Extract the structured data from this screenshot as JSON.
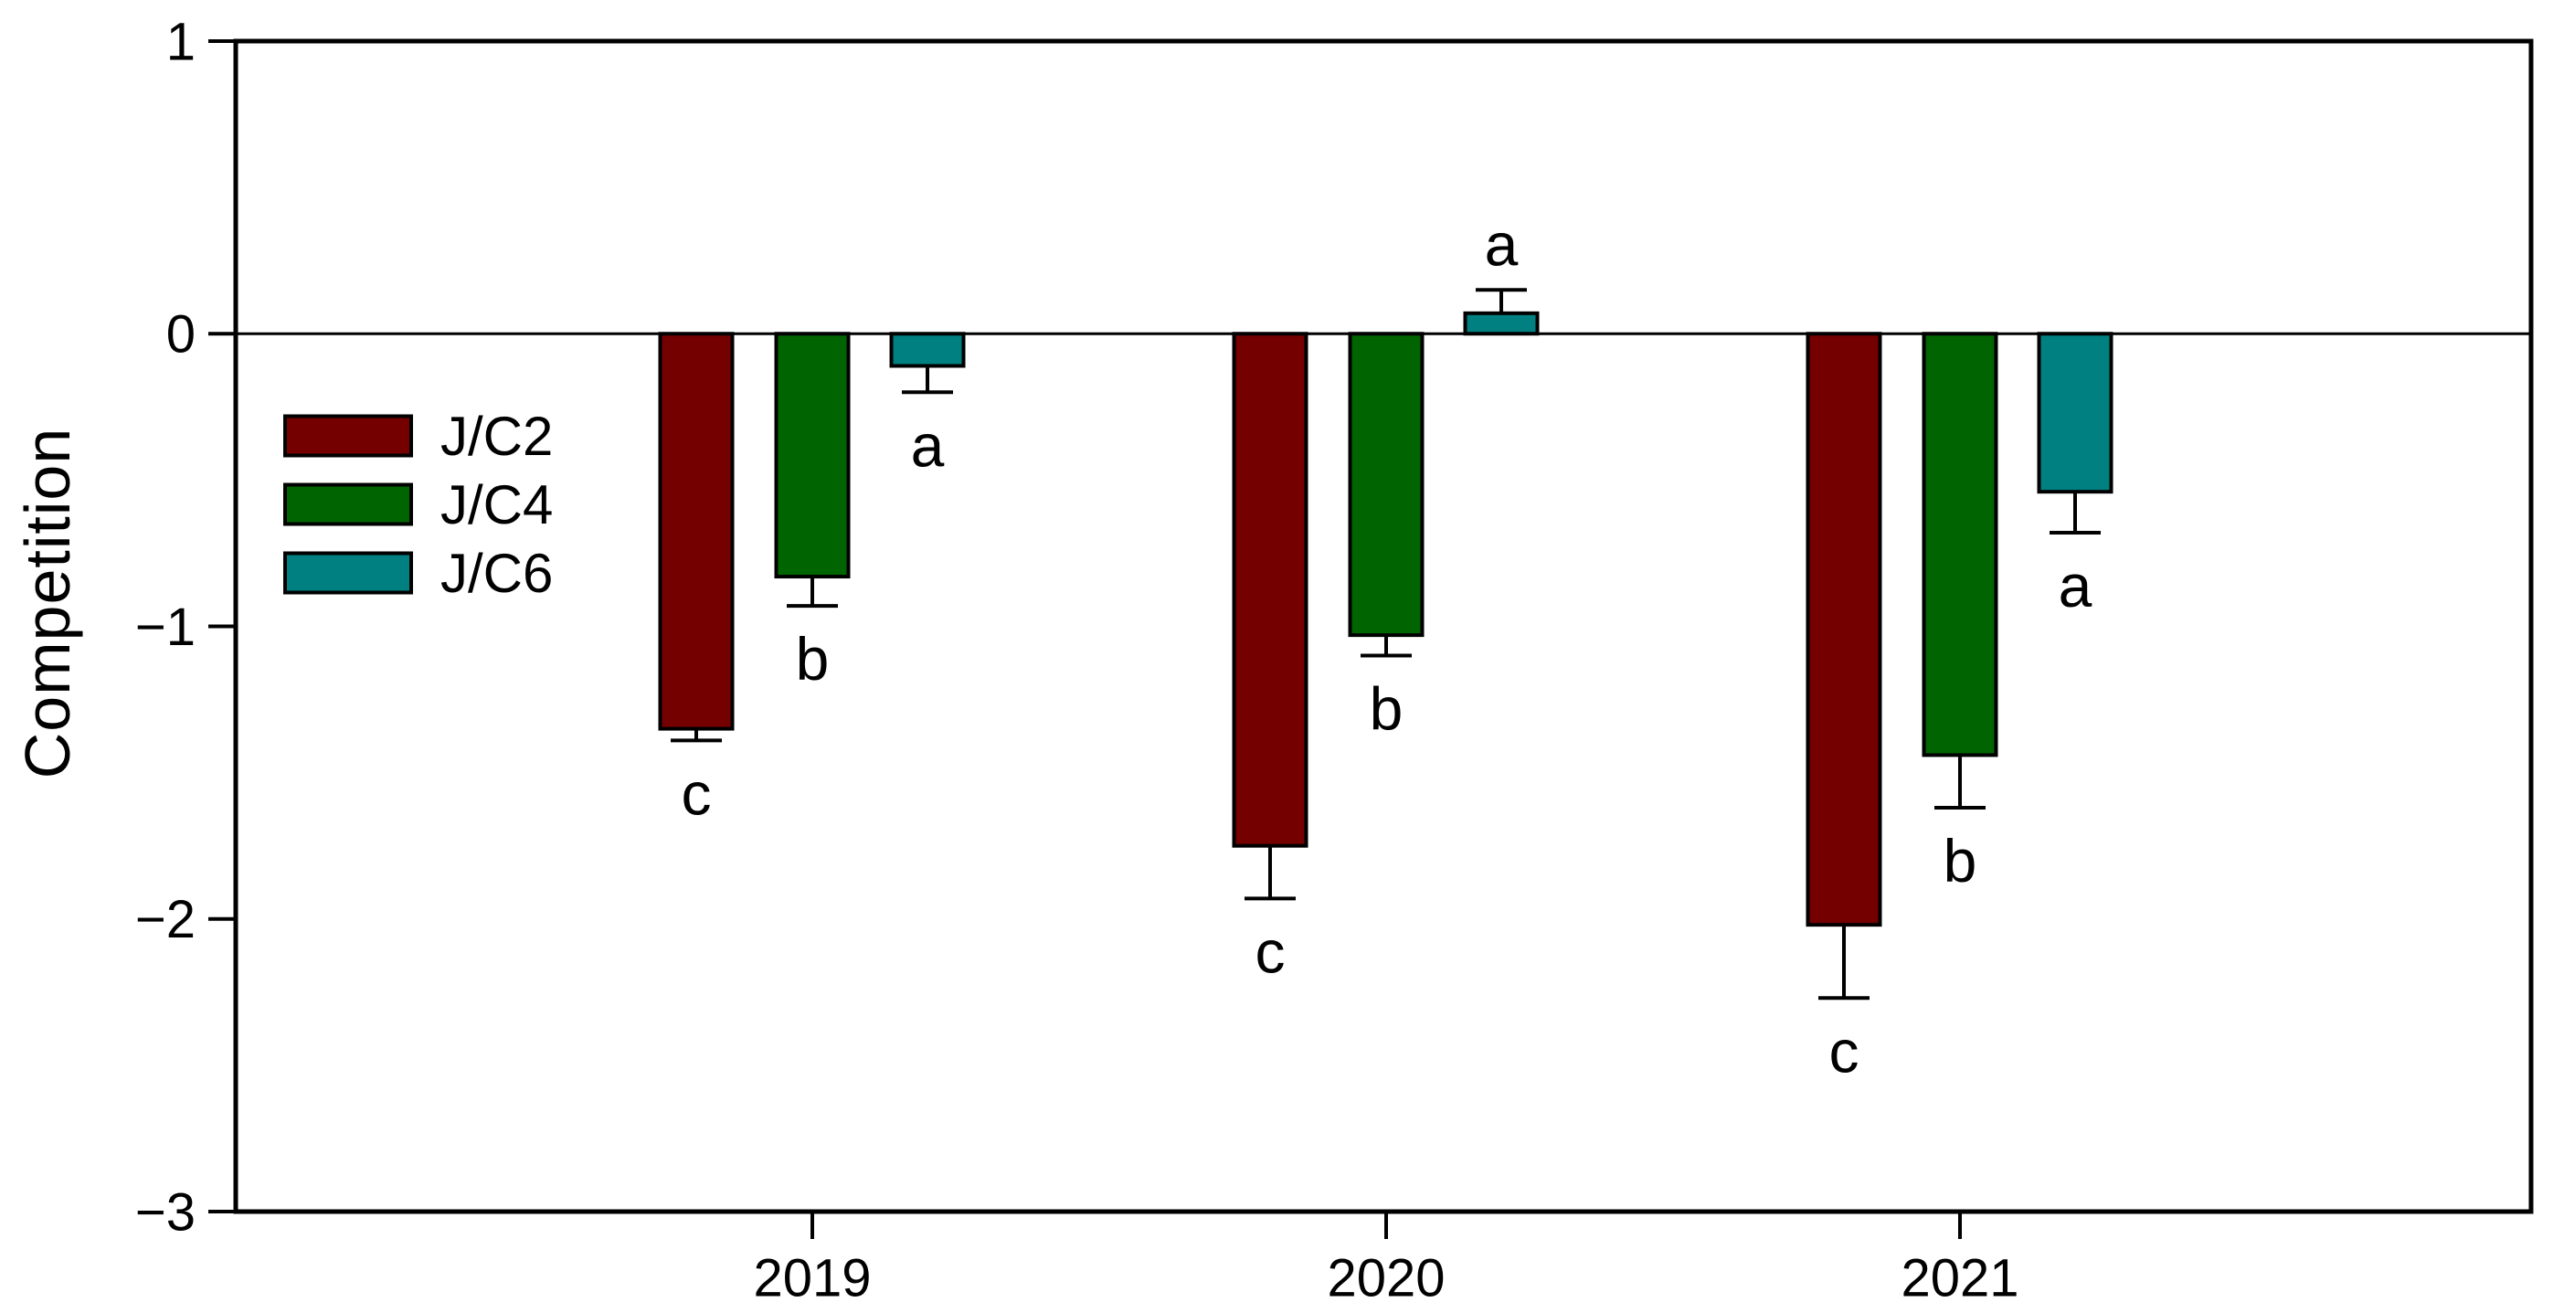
{
  "figure": {
    "background": "#ffffff",
    "frame_color": "#000000",
    "text_color": "#000000"
  },
  "chart_data": {
    "type": "bar",
    "title": "",
    "xlabel": "",
    "ylabel": "Competition",
    "categories": [
      "2019",
      "2020",
      "2021"
    ],
    "ylim": [
      -3,
      1
    ],
    "yticks": [
      {
        "value": 1,
        "label": "1"
      },
      {
        "value": 0,
        "label": "0"
      },
      {
        "value": -1,
        "label": "−1"
      },
      {
        "value": -2,
        "label": "−2"
      },
      {
        "value": -3,
        "label": "−3"
      }
    ],
    "grid": false,
    "zero_line": true,
    "error_bars": "one-sided, pointing away from zero",
    "legend": {
      "position": "upper-left-inside"
    },
    "series": [
      {
        "name": "J/C2",
        "color": "#740000",
        "values": [
          -1.35,
          -1.75,
          -2.02
        ],
        "errors": [
          0.04,
          0.18,
          0.25
        ],
        "letters": [
          "c",
          "c",
          "c"
        ]
      },
      {
        "name": "J/C4",
        "color": "#006400",
        "values": [
          -0.83,
          -1.03,
          -1.44
        ],
        "errors": [
          0.1,
          0.07,
          0.18
        ],
        "letters": [
          "b",
          "b",
          "b"
        ]
      },
      {
        "name": "J/C6",
        "color": "#008080",
        "values": [
          -0.11,
          0.07,
          -0.54
        ],
        "errors": [
          0.09,
          0.08,
          0.14
        ],
        "letters": [
          "a",
          "a",
          "a"
        ]
      }
    ]
  }
}
